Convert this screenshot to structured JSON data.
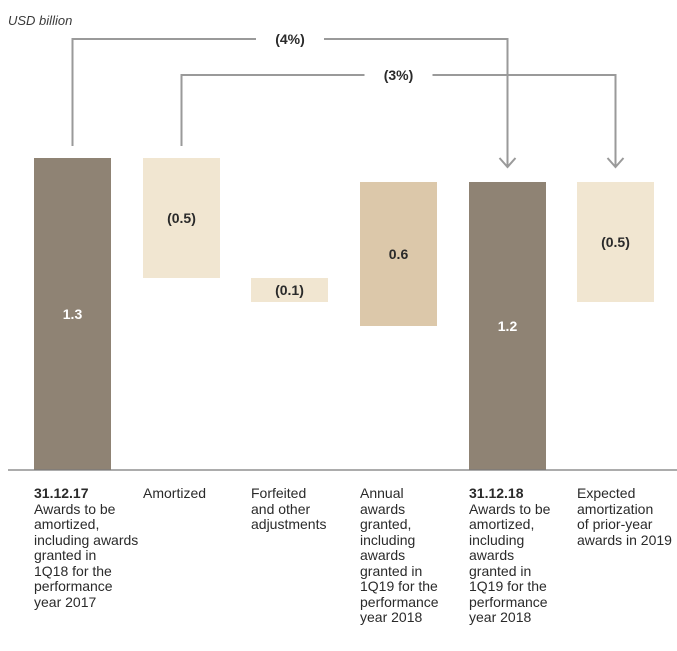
{
  "unit_label": "USD billion",
  "chart_data": {
    "type": "waterfall",
    "unit": "USD billion",
    "ylim": [
      0,
      1.35
    ],
    "bars": [
      {
        "kind": "total",
        "value": 1.3,
        "start": 0,
        "end": 1.3,
        "label": "1.3",
        "color": "#8f8374",
        "label_color": "#ffffff"
      },
      {
        "kind": "delta",
        "value": -0.5,
        "start": 0.8,
        "end": 1.3,
        "label": "(0.5)",
        "color": "#f1e6d1",
        "label_color": "#2a2a2a"
      },
      {
        "kind": "delta",
        "value": -0.1,
        "start": 0.7,
        "end": 0.8,
        "label": "(0.1)",
        "color": "#f1e6d1",
        "label_color": "#2a2a2a"
      },
      {
        "kind": "delta",
        "value": 0.6,
        "start": 0.6,
        "end": 1.2,
        "label": "0.6",
        "color": "#dcc8aa",
        "label_color": "#2a2a2a"
      },
      {
        "kind": "total",
        "value": 1.2,
        "start": 0,
        "end": 1.2,
        "label": "1.2",
        "color": "#8f8374",
        "label_color": "#ffffff"
      },
      {
        "kind": "delta",
        "value": -0.5,
        "start": 0.7,
        "end": 1.2,
        "label": "(0.5)",
        "color": "#f1e6d1",
        "label_color": "#2a2a2a"
      }
    ],
    "annotations": [
      {
        "text": "(4%)",
        "from_bar": 0,
        "to_bar": 4
      },
      {
        "text": "(3%)",
        "from_bar": 1,
        "to_bar": 5
      }
    ]
  },
  "categories": [
    {
      "date": "31.12.17",
      "lines": [
        "Awards to be",
        "amortized,",
        "including awards",
        "granted in",
        "1Q18 for the",
        "performance",
        "year 2017"
      ]
    },
    {
      "date": "",
      "lines": [
        "Amortized"
      ]
    },
    {
      "date": "",
      "lines": [
        "Forfeited",
        "and other",
        "adjustments"
      ]
    },
    {
      "date": "",
      "lines": [
        "Annual",
        "awards",
        "granted,",
        "including",
        "awards",
        "granted in",
        "1Q19 for the",
        "performance",
        "year 2018"
      ]
    },
    {
      "date": "31.12.18",
      "lines": [
        "Awards to be",
        "amortized,",
        "including",
        "awards",
        "granted in",
        "1Q19 for the",
        "performance",
        "year 2018"
      ]
    },
    {
      "date": "",
      "lines": [
        "Expected",
        "amortization",
        "of prior-year",
        "awards in 2019"
      ]
    }
  ]
}
